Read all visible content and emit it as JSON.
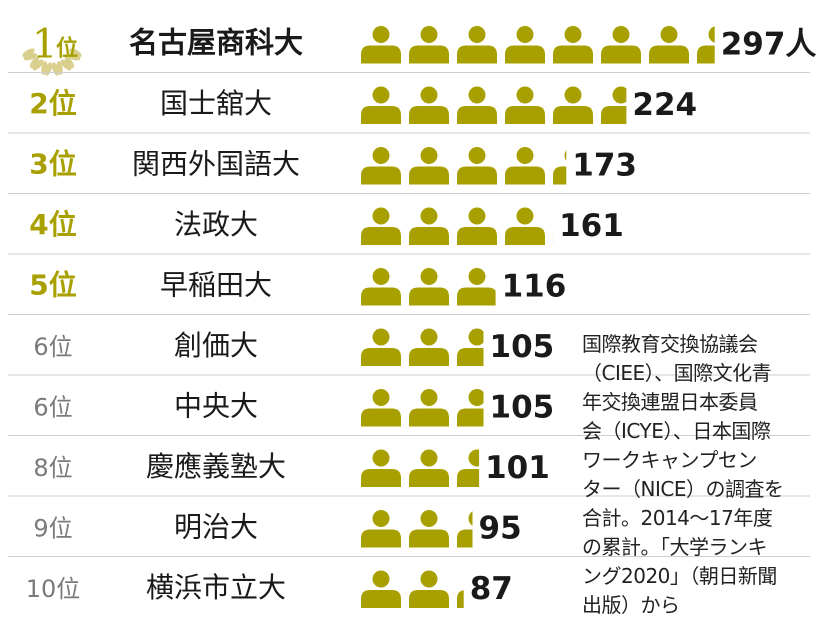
{
  "chart_data": {
    "type": "bar",
    "unit": "人",
    "categories": [
      "名古屋商科大",
      "国士舘大",
      "関西外国語大",
      "法政大",
      "早稲田大",
      "創価大",
      "中央大",
      "慶應義塾大",
      "明治大",
      "横浜市立大"
    ],
    "ranks": [
      "1",
      "2位",
      "3位",
      "4位",
      "5位",
      "6位",
      "6位",
      "8位",
      "9位",
      "10位"
    ],
    "rank_suffix": "位",
    "values": [
      297,
      224,
      173,
      161,
      116,
      105,
      105,
      101,
      95,
      87
    ],
    "value_labels": [
      "297人",
      "224",
      "173",
      "161",
      "116",
      "105",
      "105",
      "101",
      "95",
      "87"
    ],
    "people_per_icon": 40,
    "xlim": [
      0,
      320
    ]
  },
  "note": "国際教育交換協議会\n（CIEE）、国際文化青\n年交換連盟日本委員\n会（ICYE）、日本国際\nワークキャンプセン\nター（NICE）の調査を\n合計。2014～17年度\nの累計。「大学ランキ\nング2020」（朝日新聞\n出版）から",
  "colors": {
    "icon": "#a8a000",
    "rank_top": "#a8a000",
    "rank_rest": "#7a7a7a",
    "divider": "#cfcfcf",
    "text": "#1a1a1a"
  },
  "icons": {
    "laurel": "laurel-wreath-icon",
    "person": "person-icon"
  }
}
